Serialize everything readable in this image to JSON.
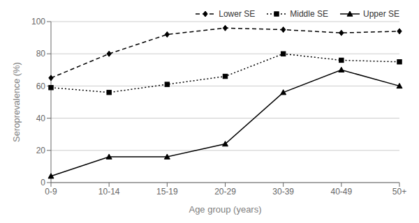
{
  "chart_data": {
    "type": "line",
    "categories": [
      "0-9",
      "10-14",
      "15-19",
      "20-29",
      "30-39",
      "40-49",
      "50+"
    ],
    "series": [
      {
        "name": "Lower SE",
        "color": "#000000",
        "line_style": "dashed",
        "marker": "diamond",
        "values": [
          65,
          80,
          92,
          96,
          95,
          93,
          94
        ]
      },
      {
        "name": "Middle SE",
        "color": "#000000",
        "line_style": "dotted",
        "marker": "square",
        "values": [
          59,
          56,
          61,
          66,
          80,
          76,
          75
        ]
      },
      {
        "name": "Upper SE",
        "color": "#000000",
        "line_style": "solid",
        "marker": "triangle",
        "values": [
          4,
          16,
          16,
          24,
          56,
          70,
          60
        ]
      }
    ],
    "xlabel": "Age group (years)",
    "ylabel": "Seroprevalence (%)",
    "ylim": [
      0,
      100
    ],
    "yticks": [
      0,
      20,
      40,
      60,
      80,
      100
    ],
    "grid": true,
    "legend": "upper right"
  }
}
